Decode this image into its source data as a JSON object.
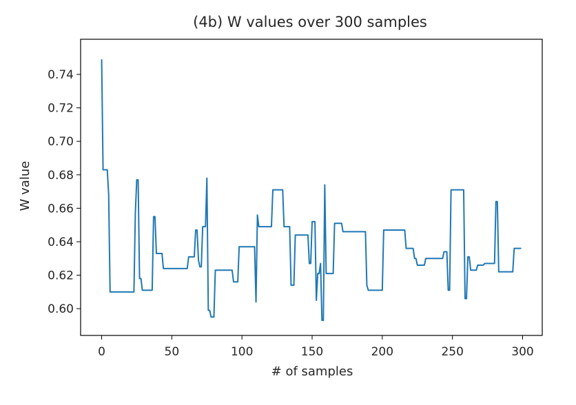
{
  "chart_data": {
    "type": "line",
    "title": "(4b) W values over 300 samples",
    "xlabel": "# of samples",
    "ylabel": "W value",
    "xlim": [
      -15,
      314
    ],
    "ylim": [
      0.584,
      0.761
    ],
    "xticks": [
      0,
      50,
      100,
      150,
      200,
      250,
      300
    ],
    "yticks": [
      0.6,
      0.62,
      0.64,
      0.66,
      0.68,
      0.7,
      0.72,
      0.74
    ],
    "grid": false,
    "line_color": "#1f77b4",
    "series": [
      {
        "x": [
          0,
          1,
          2,
          3,
          4,
          5,
          6,
          7,
          8,
          9,
          10,
          11,
          12,
          13,
          14,
          15,
          16,
          17,
          18,
          19,
          20,
          21,
          22,
          23,
          24,
          25,
          26,
          27,
          28,
          29,
          30,
          31,
          32,
          33,
          34,
          35,
          36,
          37,
          38,
          39,
          40,
          41,
          42,
          43,
          44,
          45,
          46,
          47,
          48,
          49,
          50,
          51,
          52,
          53,
          54,
          55,
          56,
          57,
          58,
          59,
          60,
          61,
          62,
          63,
          64,
          65,
          66,
          67,
          68,
          69,
          70,
          71,
          72,
          73,
          74,
          75,
          76,
          77,
          78,
          79,
          80,
          81,
          82,
          83,
          84,
          85,
          86,
          87,
          88,
          89,
          90,
          91,
          92,
          93,
          94,
          95,
          96,
          97,
          98,
          99,
          100,
          101,
          102,
          103,
          104,
          105,
          106,
          107,
          108,
          109,
          110,
          111,
          112,
          113,
          114,
          115,
          116,
          117,
          118,
          119,
          120,
          121,
          122,
          123,
          124,
          125,
          126,
          127,
          128,
          129,
          130,
          131,
          132,
          133,
          134,
          135,
          136,
          137,
          138,
          139,
          140,
          141,
          142,
          143,
          144,
          145,
          146,
          147,
          148,
          149,
          150,
          151,
          152,
          153,
          154,
          155,
          156,
          157,
          158,
          159,
          160,
          161,
          162,
          163,
          164,
          165,
          166,
          167,
          168,
          169,
          170,
          171,
          172,
          173,
          174,
          175,
          176,
          177,
          178,
          179,
          180,
          181,
          182,
          183,
          184,
          185,
          186,
          187,
          188,
          189,
          190,
          191,
          192,
          193,
          194,
          195,
          196,
          197,
          198,
          199,
          200,
          201,
          202,
          203,
          204,
          205,
          206,
          207,
          208,
          209,
          210,
          211,
          212,
          213,
          214,
          215,
          216,
          217,
          218,
          219,
          220,
          221,
          222,
          223,
          224,
          225,
          226,
          227,
          228,
          229,
          230,
          231,
          232,
          233,
          234,
          235,
          236,
          237,
          238,
          239,
          240,
          241,
          242,
          243,
          244,
          245,
          246,
          247,
          248,
          249,
          250,
          251,
          252,
          253,
          254,
          255,
          256,
          257,
          258,
          259,
          260,
          261,
          262,
          263,
          264,
          265,
          266,
          267,
          268,
          269,
          270,
          271,
          272,
          273,
          274,
          275,
          276,
          277,
          278,
          279,
          280,
          281,
          282,
          283,
          284,
          285,
          286,
          287,
          288,
          289,
          290,
          291,
          292,
          293,
          294,
          295,
          296,
          297,
          298,
          299
        ],
        "values": [
          0.749,
          0.683,
          0.683,
          0.683,
          0.683,
          0.668,
          0.61,
          0.61,
          0.61,
          0.61,
          0.61,
          0.61,
          0.61,
          0.61,
          0.61,
          0.61,
          0.61,
          0.61,
          0.61,
          0.61,
          0.61,
          0.61,
          0.61,
          0.61,
          0.657,
          0.677,
          0.677,
          0.618,
          0.618,
          0.611,
          0.611,
          0.611,
          0.611,
          0.611,
          0.611,
          0.611,
          0.611,
          0.655,
          0.655,
          0.633,
          0.633,
          0.633,
          0.633,
          0.633,
          0.624,
          0.624,
          0.624,
          0.624,
          0.624,
          0.624,
          0.624,
          0.624,
          0.624,
          0.624,
          0.624,
          0.624,
          0.624,
          0.624,
          0.624,
          0.624,
          0.624,
          0.624,
          0.631,
          0.631,
          0.631,
          0.631,
          0.631,
          0.647,
          0.647,
          0.629,
          0.625,
          0.625,
          0.649,
          0.649,
          0.649,
          0.678,
          0.599,
          0.599,
          0.595,
          0.595,
          0.595,
          0.623,
          0.623,
          0.623,
          0.623,
          0.623,
          0.623,
          0.623,
          0.623,
          0.623,
          0.623,
          0.623,
          0.623,
          0.623,
          0.616,
          0.616,
          0.616,
          0.616,
          0.637,
          0.637,
          0.637,
          0.637,
          0.637,
          0.637,
          0.637,
          0.637,
          0.637,
          0.637,
          0.637,
          0.637,
          0.604,
          0.656,
          0.649,
          0.649,
          0.649,
          0.649,
          0.649,
          0.649,
          0.649,
          0.649,
          0.649,
          0.649,
          0.671,
          0.671,
          0.671,
          0.671,
          0.671,
          0.671,
          0.671,
          0.671,
          0.649,
          0.649,
          0.649,
          0.649,
          0.649,
          0.614,
          0.614,
          0.614,
          0.644,
          0.644,
          0.644,
          0.644,
          0.644,
          0.644,
          0.644,
          0.644,
          0.644,
          0.644,
          0.627,
          0.627,
          0.652,
          0.652,
          0.652,
          0.605,
          0.621,
          0.621,
          0.627,
          0.593,
          0.593,
          0.674,
          0.621,
          0.621,
          0.621,
          0.621,
          0.621,
          0.621,
          0.651,
          0.651,
          0.651,
          0.651,
          0.651,
          0.651,
          0.646,
          0.646,
          0.646,
          0.646,
          0.646,
          0.646,
          0.646,
          0.646,
          0.646,
          0.646,
          0.646,
          0.646,
          0.646,
          0.646,
          0.646,
          0.646,
          0.646,
          0.614,
          0.611,
          0.611,
          0.611,
          0.611,
          0.611,
          0.611,
          0.611,
          0.611,
          0.611,
          0.611,
          0.611,
          0.647,
          0.647,
          0.647,
          0.647,
          0.647,
          0.647,
          0.647,
          0.647,
          0.647,
          0.647,
          0.647,
          0.647,
          0.647,
          0.647,
          0.647,
          0.647,
          0.636,
          0.636,
          0.636,
          0.636,
          0.636,
          0.636,
          0.63,
          0.63,
          0.626,
          0.626,
          0.626,
          0.626,
          0.626,
          0.626,
          0.63,
          0.63,
          0.63,
          0.63,
          0.63,
          0.63,
          0.63,
          0.63,
          0.63,
          0.63,
          0.63,
          0.63,
          0.63,
          0.634,
          0.634,
          0.634,
          0.611,
          0.611,
          0.671,
          0.671,
          0.671,
          0.671,
          0.671,
          0.671,
          0.671,
          0.671,
          0.671,
          0.671,
          0.606,
          0.606,
          0.631,
          0.631,
          0.623,
          0.623,
          0.623,
          0.623,
          0.623,
          0.626,
          0.626,
          0.626,
          0.626,
          0.626,
          0.627,
          0.627,
          0.627,
          0.627,
          0.627,
          0.627,
          0.627,
          0.627,
          0.664,
          0.664,
          0.622,
          0.622,
          0.622,
          0.622,
          0.622,
          0.622,
          0.622,
          0.622,
          0.622,
          0.622,
          0.622,
          0.636,
          0.636,
          0.636,
          0.636,
          0.636,
          0.636
        ]
      }
    ]
  }
}
